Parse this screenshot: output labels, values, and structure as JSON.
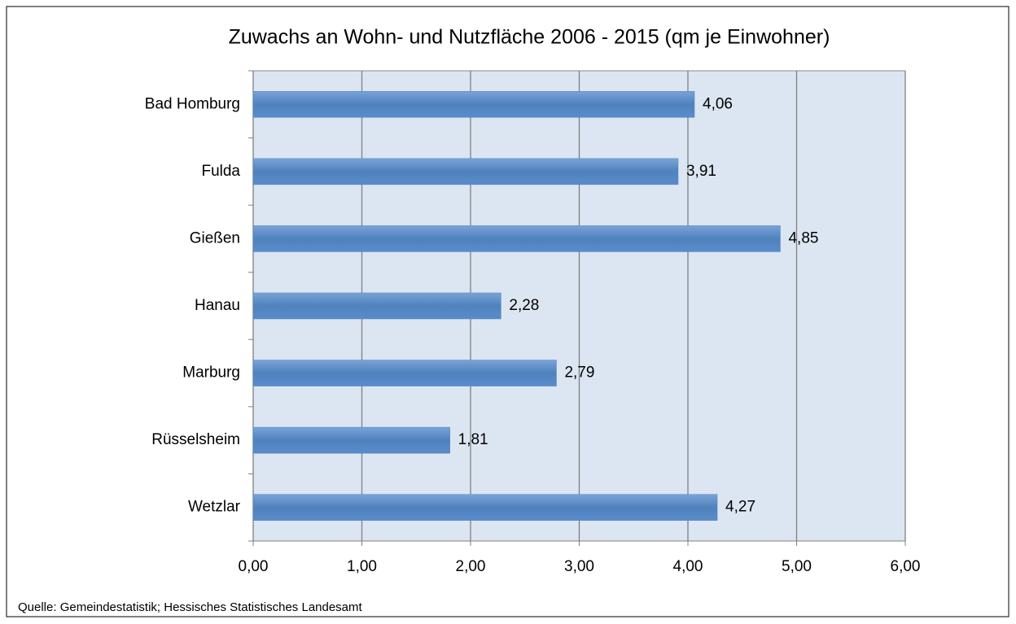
{
  "chart_data": {
    "type": "bar",
    "orientation": "horizontal",
    "title": "Zuwachs an Wohn- und Nutzfläche 2006 - 2015 (qm je Einwohner)",
    "categories": [
      "Bad Homburg",
      "Fulda",
      "Gießen",
      "Hanau",
      "Marburg",
      "Rüsselsheim",
      "Wetzlar"
    ],
    "values": [
      4.06,
      3.91,
      4.85,
      2.28,
      2.79,
      1.81,
      4.27
    ],
    "value_labels": [
      "4,06",
      "3,91",
      "4,85",
      "2,28",
      "2,79",
      "1,81",
      "4,27"
    ],
    "color": "#4f81bd",
    "xlim": [
      0,
      6
    ],
    "xticks": [
      {
        "value": 0,
        "label": "0,00"
      },
      {
        "value": 1,
        "label": "1,00"
      },
      {
        "value": 2,
        "label": "2,00"
      },
      {
        "value": 3,
        "label": "3,00"
      },
      {
        "value": 4,
        "label": "4,00"
      },
      {
        "value": 5,
        "label": "5,00"
      },
      {
        "value": 6,
        "label": "6,00"
      }
    ],
    "grid": true,
    "source": "Quelle: Gemeindestatistik; Hessisches Statistisches Landesamt"
  }
}
